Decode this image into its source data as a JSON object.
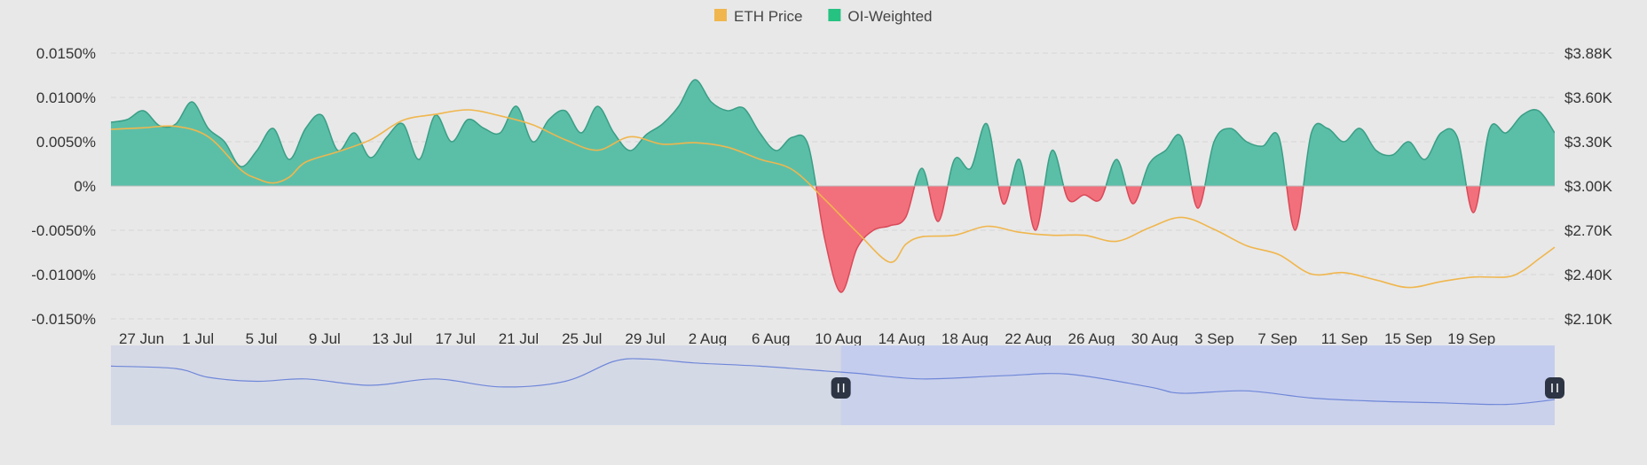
{
  "chart_data": {
    "type": "area",
    "legend": {
      "placement": "top-center",
      "items": [
        {
          "name": "ETH Price",
          "color": "#f0b64d"
        },
        {
          "name": "OI-Weighted",
          "color": "#26c281"
        }
      ]
    },
    "x_labels": [
      "27 Jun",
      "1 Jul",
      "5 Jul",
      "9 Jul",
      "13 Jul",
      "17 Jul",
      "21 Jul",
      "25 Jul",
      "29 Jul",
      "2 Aug",
      "6 Aug",
      "10 Aug",
      "14 Aug",
      "18 Aug",
      "22 Aug",
      "26 Aug",
      "30 Aug",
      "3 Sep",
      "7 Sep",
      "11 Sep",
      "15 Sep",
      "19 Sep"
    ],
    "x_range_days": [
      0,
      89
    ],
    "y_left": {
      "ticks": [
        "0.0150%",
        "0.0100%",
        "0.0050%",
        "0%",
        "-0.0050%",
        "-0.0100%",
        "-0.0150%"
      ],
      "range": [
        -0.015,
        0.015
      ]
    },
    "y_right": {
      "ticks": [
        "$3.88K",
        "$3.60K",
        "$3.30K",
        "$3.00K",
        "$2.70K",
        "$2.40K",
        "$2.10K"
      ],
      "range": [
        2100,
        3880
      ]
    },
    "colors": {
      "positive": "#5bbfa8",
      "positive_line": "#3a9e86",
      "negative": "#f2707c",
      "negative_line": "#d94a59",
      "price": "#f0b64d",
      "grid": "#d6d6d6",
      "navigator_fill": "#d5d9e6",
      "navigator_selected": "#c5cdee",
      "navigator_line": "#6f87d8"
    },
    "series": [
      {
        "name": "OI-Weighted",
        "points": [
          [
            0,
            0.0072
          ],
          [
            1,
            0.0075
          ],
          [
            2,
            0.0085
          ],
          [
            3,
            0.0068
          ],
          [
            4,
            0.007
          ],
          [
            5,
            0.0095
          ],
          [
            6,
            0.0065
          ],
          [
            7,
            0.005
          ],
          [
            8,
            0.0022
          ],
          [
            9,
            0.004
          ],
          [
            10,
            0.0065
          ],
          [
            11,
            0.003
          ],
          [
            12,
            0.0065
          ],
          [
            13,
            0.008
          ],
          [
            14,
            0.004
          ],
          [
            15,
            0.006
          ],
          [
            16,
            0.0032
          ],
          [
            17,
            0.0055
          ],
          [
            18,
            0.007
          ],
          [
            19,
            0.003
          ],
          [
            20,
            0.008
          ],
          [
            21,
            0.005
          ],
          [
            22,
            0.0075
          ],
          [
            23,
            0.0065
          ],
          [
            24,
            0.006
          ],
          [
            25,
            0.009
          ],
          [
            26,
            0.005
          ],
          [
            27,
            0.0075
          ],
          [
            28,
            0.0085
          ],
          [
            29,
            0.006
          ],
          [
            30,
            0.009
          ],
          [
            31,
            0.006
          ],
          [
            32,
            0.004
          ],
          [
            33,
            0.0058
          ],
          [
            34,
            0.007
          ],
          [
            35,
            0.009
          ],
          [
            36,
            0.012
          ],
          [
            37,
            0.0095
          ],
          [
            38,
            0.0085
          ],
          [
            39,
            0.0088
          ],
          [
            40,
            0.006
          ],
          [
            41,
            0.004
          ],
          [
            42,
            0.0055
          ],
          [
            43,
            0.0045
          ],
          [
            44,
            -0.006
          ],
          [
            45,
            -0.012
          ],
          [
            46,
            -0.007
          ],
          [
            47,
            -0.005
          ],
          [
            48,
            -0.0045
          ],
          [
            49,
            -0.0035
          ],
          [
            50,
            0.002
          ],
          [
            51,
            -0.004
          ],
          [
            52,
            0.003
          ],
          [
            53,
            0.002
          ],
          [
            54,
            0.007
          ],
          [
            55,
            -0.002
          ],
          [
            56,
            0.003
          ],
          [
            57,
            -0.005
          ],
          [
            58,
            0.004
          ],
          [
            59,
            -0.0015
          ],
          [
            60,
            -0.001
          ],
          [
            61,
            -0.0015
          ],
          [
            62,
            0.003
          ],
          [
            63,
            -0.002
          ],
          [
            64,
            0.0025
          ],
          [
            65,
            0.004
          ],
          [
            66,
            0.0055
          ],
          [
            67,
            -0.0025
          ],
          [
            68,
            0.005
          ],
          [
            69,
            0.0065
          ],
          [
            70,
            0.005
          ],
          [
            71,
            0.0045
          ],
          [
            72,
            0.0055
          ],
          [
            73,
            -0.005
          ],
          [
            74,
            0.006
          ],
          [
            75,
            0.0065
          ],
          [
            76,
            0.005
          ],
          [
            77,
            0.0065
          ],
          [
            78,
            0.004
          ],
          [
            79,
            0.0035
          ],
          [
            80,
            0.005
          ],
          [
            81,
            0.003
          ],
          [
            82,
            0.006
          ],
          [
            83,
            0.0055
          ],
          [
            84,
            -0.003
          ],
          [
            85,
            0.0065
          ],
          [
            86,
            0.006
          ],
          [
            87,
            0.008
          ],
          [
            88,
            0.0085
          ],
          [
            89,
            0.006
          ]
        ]
      },
      {
        "name": "ETH Price",
        "points": [
          [
            0,
            3370
          ],
          [
            2,
            3380
          ],
          [
            4,
            3390
          ],
          [
            6,
            3320
          ],
          [
            8,
            3100
          ],
          [
            9,
            3040
          ],
          [
            10,
            3010
          ],
          [
            11,
            3050
          ],
          [
            12,
            3150
          ],
          [
            14,
            3220
          ],
          [
            16,
            3300
          ],
          [
            18,
            3430
          ],
          [
            20,
            3470
          ],
          [
            22,
            3500
          ],
          [
            24,
            3460
          ],
          [
            26,
            3400
          ],
          [
            28,
            3300
          ],
          [
            30,
            3230
          ],
          [
            32,
            3320
          ],
          [
            34,
            3270
          ],
          [
            36,
            3280
          ],
          [
            38,
            3250
          ],
          [
            40,
            3170
          ],
          [
            42,
            3100
          ],
          [
            44,
            2900
          ],
          [
            46,
            2680
          ],
          [
            48,
            2480
          ],
          [
            49,
            2600
          ],
          [
            50,
            2650
          ],
          [
            52,
            2660
          ],
          [
            54,
            2720
          ],
          [
            56,
            2680
          ],
          [
            58,
            2660
          ],
          [
            60,
            2660
          ],
          [
            62,
            2620
          ],
          [
            64,
            2710
          ],
          [
            66,
            2780
          ],
          [
            68,
            2700
          ],
          [
            70,
            2590
          ],
          [
            72,
            2530
          ],
          [
            74,
            2400
          ],
          [
            76,
            2410
          ],
          [
            78,
            2360
          ],
          [
            80,
            2310
          ],
          [
            82,
            2350
          ],
          [
            84,
            2380
          ],
          [
            86,
            2380
          ],
          [
            87,
            2420
          ],
          [
            88,
            2500
          ],
          [
            89,
            2580
          ]
        ]
      }
    ],
    "navigator": {
      "selected_range_days": [
        45,
        89
      ],
      "points": [
        [
          0,
          0.74
        ],
        [
          4,
          0.71
        ],
        [
          6,
          0.6
        ],
        [
          9,
          0.55
        ],
        [
          12,
          0.58
        ],
        [
          16,
          0.5
        ],
        [
          20,
          0.58
        ],
        [
          24,
          0.48
        ],
        [
          28,
          0.55
        ],
        [
          31,
          0.8
        ],
        [
          33,
          0.83
        ],
        [
          36,
          0.78
        ],
        [
          40,
          0.74
        ],
        [
          44,
          0.68
        ],
        [
          46,
          0.65
        ],
        [
          50,
          0.58
        ],
        [
          55,
          0.62
        ],
        [
          59,
          0.64
        ],
        [
          64,
          0.48
        ],
        [
          66,
          0.4
        ],
        [
          70,
          0.43
        ],
        [
          74,
          0.34
        ],
        [
          78,
          0.3
        ],
        [
          82,
          0.28
        ],
        [
          86,
          0.26
        ],
        [
          89,
          0.32
        ]
      ]
    }
  }
}
